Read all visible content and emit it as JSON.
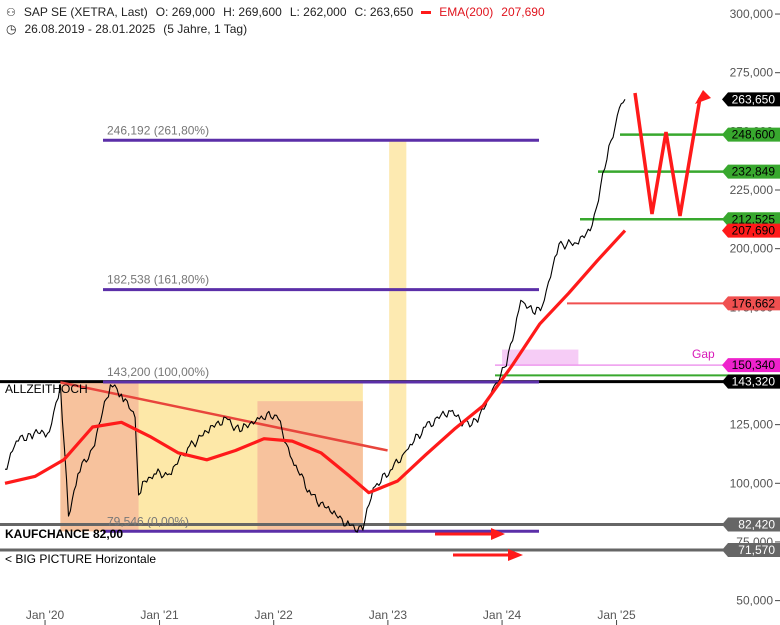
{
  "header": {
    "title": "SAP SE (XETRA, Last)",
    "open": "O: 269,000",
    "high": "H: 269,600",
    "low": "L: 262,000",
    "close": "C: 263,650",
    "ema_label": "EMA(200)",
    "ema_value": "207,690",
    "range": "26.08.2019 - 28.01.2025",
    "interval": "(5 Jahre, 1 Tag)",
    "ema_color": "#ff1a1a"
  },
  "chart_data": {
    "type": "line",
    "y_ticks": [
      "50,000",
      "75,000",
      "100,000",
      "125,000",
      "150,000",
      "175,000",
      "200,000",
      "225,000",
      "250,000",
      "275,000",
      "300,000"
    ],
    "y_tick_values": [
      50,
      75,
      100,
      125,
      150,
      175,
      200,
      225,
      250,
      275,
      300
    ],
    "ylim": [
      46,
      303
    ],
    "x_ticks": [
      "Jan '20",
      "Jan '21",
      "Jan '22",
      "Jan '23",
      "Jan '24",
      "Jan '25"
    ],
    "x_tick_values": [
      "2020-01-01",
      "2021-01-01",
      "2022-01-01",
      "2023-01-01",
      "2024-01-01",
      "2025-01-01"
    ],
    "xlim": [
      "2019-08-26",
      "2025-01-28"
    ],
    "series": [
      {
        "name": "SAP SE (XETRA, Last)",
        "color": "#000000",
        "x": [
          "2019-08-26",
          "2019-10-01",
          "2019-11-15",
          "2020-01-15",
          "2020-02-19",
          "2020-03-16",
          "2020-04-15",
          "2020-06-01",
          "2020-07-28",
          "2020-09-01",
          "2020-10-15",
          "2020-10-26",
          "2020-11-15",
          "2020-12-15",
          "2021-02-01",
          "2021-04-01",
          "2021-06-01",
          "2021-08-01",
          "2021-09-15",
          "2021-11-10",
          "2022-01-10",
          "2022-03-01",
          "2022-05-01",
          "2022-07-01",
          "2022-09-01",
          "2022-10-13",
          "2022-11-15",
          "2023-01-15",
          "2023-03-01",
          "2023-05-01",
          "2023-07-15",
          "2023-09-01",
          "2023-10-15",
          "2023-12-01",
          "2024-01-15",
          "2024-03-01",
          "2024-04-15",
          "2024-05-15",
          "2024-07-01",
          "2024-09-01",
          "2024-10-15",
          "2024-12-01",
          "2025-01-10",
          "2025-01-28"
        ],
        "values": [
          106,
          118,
          121,
          122,
          142,
          86,
          104,
          115,
          142,
          138,
          128,
          95,
          101,
          104,
          104,
          115,
          122,
          128,
          122,
          128,
          129,
          110,
          95,
          88,
          82,
          80,
          98,
          106,
          114,
          124,
          131,
          126,
          126,
          140,
          150,
          178,
          172,
          178,
          202,
          202,
          210,
          238,
          260,
          263.65
        ]
      },
      {
        "name": "EMA(200)",
        "color": "#ff1a1a",
        "x": [
          "2019-08-26",
          "2019-12-01",
          "2020-03-01",
          "2020-06-01",
          "2020-09-01",
          "2020-12-01",
          "2021-03-01",
          "2021-06-01",
          "2021-09-01",
          "2021-12-01",
          "2022-03-01",
          "2022-06-01",
          "2022-09-01",
          "2022-11-01",
          "2023-02-01",
          "2023-05-01",
          "2023-08-01",
          "2023-11-01",
          "2024-02-01",
          "2024-05-01",
          "2024-08-01",
          "2024-11-01",
          "2025-01-28"
        ],
        "values": [
          100,
          103,
          110,
          124,
          126,
          120,
          113,
          110,
          114,
          119,
          118,
          113,
          103,
          96,
          101,
          112,
          123,
          133,
          150,
          168,
          181,
          195,
          207.69
        ]
      }
    ],
    "fib_levels": [
      {
        "label": "79,546 (0,00%)",
        "value": 79.546
      },
      {
        "label": "143,200 (100,00%)",
        "value": 143.2
      },
      {
        "label": "182,538 (161,80%)",
        "value": 182.538
      },
      {
        "label": "246,192 (261,80%)",
        "value": 246.192
      }
    ],
    "price_tags": [
      {
        "label": "263,650",
        "value": 263.65,
        "bg": "#000000",
        "fg": "#ffffff"
      },
      {
        "label": "248,600",
        "value": 248.6,
        "bg": "#38a82e",
        "fg": "#000000"
      },
      {
        "label": "232,849",
        "value": 232.849,
        "bg": "#38a82e",
        "fg": "#000000"
      },
      {
        "label": "212,525",
        "value": 212.525,
        "bg": "#38a82e",
        "fg": "#000000"
      },
      {
        "label": "207,690",
        "value": 207.69,
        "bg": "#ff1a1a",
        "fg": "#000000"
      },
      {
        "label": "176,662",
        "value": 176.662,
        "bg": "#f05050",
        "fg": "#000000"
      },
      {
        "label": "150,340",
        "value": 150.34,
        "bg": "#ee22cc",
        "fg": "#000000"
      },
      {
        "label": "143,320",
        "value": 143.32,
        "bg": "#000000",
        "fg": "#ffffff"
      },
      {
        "label": "82,420",
        "value": 82.42,
        "bg": "#666666",
        "fg": "#ffffff"
      },
      {
        "label": "71,570",
        "value": 71.57,
        "bg": "#666666",
        "fg": "#ffffff"
      }
    ],
    "annotations": {
      "allzeithoch": "ALLZEITHOCH",
      "kaufchance": "KAUFCHANCE 82,00",
      "big_picture": "< BIG PICTURE Horizontale",
      "gap": "Gap"
    },
    "colors": {
      "fib": "#5b2fa8",
      "support_green": "#38a82e",
      "resistance_red": "#f05050",
      "gray_line": "#666666",
      "gap_zone": "#ee99ee",
      "highlight_yellow": "#fde8a8",
      "highlight_orange": "#f5b89a"
    }
  }
}
